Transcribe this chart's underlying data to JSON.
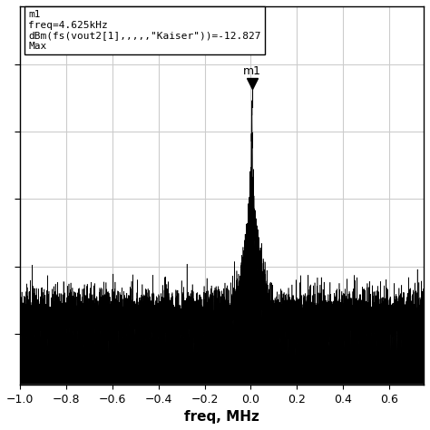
{
  "title": "",
  "xlabel": "freq, MHz",
  "ylabel": "",
  "xlim": [
    -1.0,
    0.75
  ],
  "peak_freq": 0.004625,
  "peak_dBm": -12.827,
  "noise_floor": -75,
  "phase_noise_slope": 20,
  "annotation_text": "m1",
  "legend_text": "m1\nfreq=4.625kHz\ndBm(fs(vout2[1],,,,,\"Kaiser\"))=-12.827\nMax",
  "grid_color": "#cccccc",
  "background_color": "#ffffff",
  "line_color": "#000000",
  "xticks": [
    -1.0,
    -0.8,
    -0.6,
    -0.4,
    -0.2,
    0.0,
    0.2,
    0.4,
    0.6
  ],
  "seed": 42
}
